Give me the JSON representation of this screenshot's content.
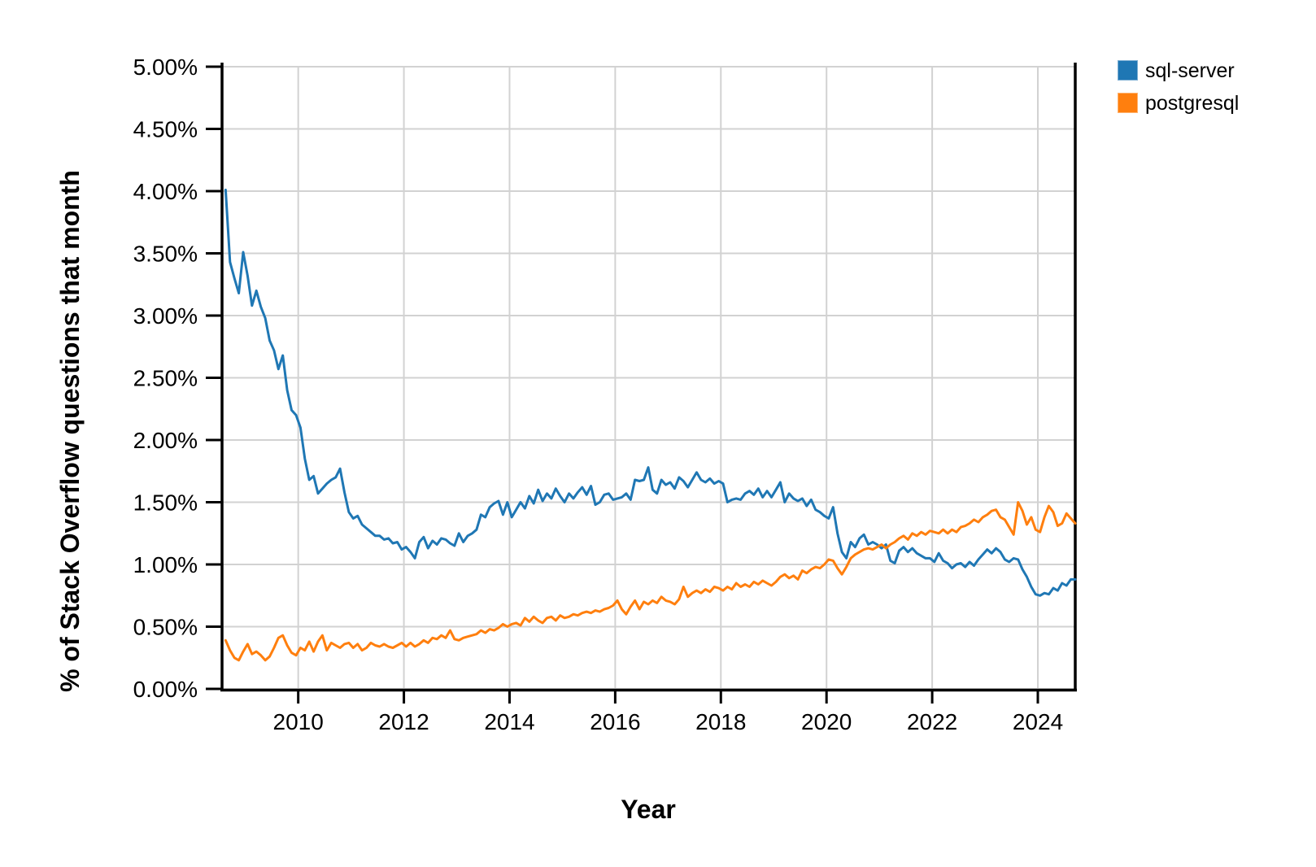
{
  "chart_data": {
    "type": "line",
    "title": "",
    "xlabel": "Year",
    "ylabel": "% of Stack Overflow questions that month",
    "x_frequency": "monthly",
    "x_start": "2008-08",
    "x_end": "2024-09",
    "xlim": [
      2008.558,
      2024.708
    ],
    "ylim": [
      0,
      5
    ],
    "grid": true,
    "legend_position": "outside-top-right",
    "grid_color": "#d2d2d2",
    "axis_color": "#000000",
    "x_ticks": [
      2010,
      2012,
      2014,
      2016,
      2018,
      2020,
      2022,
      2024
    ],
    "y_ticks": [
      0,
      0.5,
      1,
      1.5,
      2,
      2.5,
      3,
      3.5,
      4,
      4.5,
      5
    ],
    "y_tick_labels": [
      "0.00%",
      "0.50%",
      "1.00%",
      "1.50%",
      "2.00%",
      "2.50%",
      "3.00%",
      "3.50%",
      "4.00%",
      "4.50%",
      "5.00%"
    ],
    "series": [
      {
        "name": "sql-server",
        "color": "#1f77b4",
        "values": [
          4.01,
          3.43,
          3.3,
          3.18,
          3.51,
          3.32,
          3.08,
          3.2,
          3.07,
          2.98,
          2.8,
          2.72,
          2.57,
          2.68,
          2.4,
          2.24,
          2.2,
          2.1,
          1.85,
          1.68,
          1.71,
          1.57,
          1.61,
          1.65,
          1.68,
          1.7,
          1.77,
          1.58,
          1.42,
          1.37,
          1.39,
          1.32,
          1.29,
          1.26,
          1.23,
          1.23,
          1.2,
          1.21,
          1.17,
          1.18,
          1.12,
          1.14,
          1.1,
          1.05,
          1.18,
          1.22,
          1.13,
          1.19,
          1.16,
          1.21,
          1.2,
          1.17,
          1.15,
          1.25,
          1.18,
          1.23,
          1.25,
          1.28,
          1.4,
          1.38,
          1.46,
          1.49,
          1.51,
          1.4,
          1.5,
          1.38,
          1.44,
          1.5,
          1.45,
          1.55,
          1.49,
          1.6,
          1.51,
          1.57,
          1.53,
          1.61,
          1.55,
          1.5,
          1.57,
          1.53,
          1.58,
          1.62,
          1.56,
          1.63,
          1.48,
          1.5,
          1.56,
          1.57,
          1.52,
          1.53,
          1.54,
          1.57,
          1.52,
          1.68,
          1.67,
          1.68,
          1.78,
          1.6,
          1.57,
          1.68,
          1.64,
          1.66,
          1.61,
          1.7,
          1.67,
          1.62,
          1.68,
          1.74,
          1.68,
          1.66,
          1.69,
          1.65,
          1.67,
          1.65,
          1.5,
          1.52,
          1.53,
          1.52,
          1.57,
          1.59,
          1.56,
          1.61,
          1.54,
          1.59,
          1.54,
          1.6,
          1.66,
          1.5,
          1.57,
          1.53,
          1.51,
          1.53,
          1.47,
          1.52,
          1.44,
          1.42,
          1.39,
          1.37,
          1.46,
          1.25,
          1.1,
          1.05,
          1.18,
          1.14,
          1.21,
          1.24,
          1.16,
          1.18,
          1.16,
          1.13,
          1.16,
          1.03,
          1.01,
          1.11,
          1.14,
          1.1,
          1.13,
          1.09,
          1.07,
          1.05,
          1.05,
          1.02,
          1.09,
          1.03,
          1.01,
          0.97,
          1.0,
          1.01,
          0.98,
          1.02,
          0.99,
          1.04,
          1.08,
          1.12,
          1.09,
          1.13,
          1.1,
          1.04,
          1.02,
          1.05,
          1.04,
          0.96,
          0.9,
          0.82,
          0.76,
          0.75,
          0.77,
          0.76,
          0.81,
          0.79,
          0.85,
          0.83,
          0.88,
          0.88
        ]
      },
      {
        "name": "postgresql",
        "color": "#ff7f0e",
        "values": [
          0.39,
          0.31,
          0.25,
          0.23,
          0.3,
          0.36,
          0.28,
          0.3,
          0.27,
          0.23,
          0.26,
          0.33,
          0.41,
          0.43,
          0.35,
          0.29,
          0.27,
          0.33,
          0.31,
          0.38,
          0.3,
          0.38,
          0.43,
          0.31,
          0.37,
          0.35,
          0.33,
          0.36,
          0.37,
          0.33,
          0.36,
          0.31,
          0.33,
          0.37,
          0.35,
          0.34,
          0.36,
          0.34,
          0.33,
          0.35,
          0.37,
          0.34,
          0.37,
          0.34,
          0.36,
          0.39,
          0.37,
          0.41,
          0.4,
          0.43,
          0.41,
          0.47,
          0.4,
          0.39,
          0.41,
          0.42,
          0.43,
          0.44,
          0.47,
          0.45,
          0.48,
          0.47,
          0.49,
          0.52,
          0.5,
          0.52,
          0.53,
          0.51,
          0.57,
          0.54,
          0.58,
          0.55,
          0.53,
          0.57,
          0.58,
          0.55,
          0.59,
          0.57,
          0.58,
          0.6,
          0.59,
          0.61,
          0.62,
          0.61,
          0.63,
          0.62,
          0.64,
          0.65,
          0.67,
          0.71,
          0.64,
          0.6,
          0.66,
          0.71,
          0.64,
          0.7,
          0.68,
          0.71,
          0.69,
          0.74,
          0.71,
          0.7,
          0.68,
          0.72,
          0.82,
          0.74,
          0.77,
          0.79,
          0.77,
          0.8,
          0.78,
          0.82,
          0.81,
          0.79,
          0.82,
          0.8,
          0.85,
          0.82,
          0.84,
          0.82,
          0.86,
          0.84,
          0.87,
          0.85,
          0.83,
          0.86,
          0.9,
          0.92,
          0.89,
          0.91,
          0.88,
          0.95,
          0.93,
          0.96,
          0.98,
          0.97,
          1.0,
          1.04,
          1.03,
          0.97,
          0.92,
          0.98,
          1.05,
          1.08,
          1.1,
          1.12,
          1.13,
          1.12,
          1.14,
          1.16,
          1.13,
          1.16,
          1.18,
          1.21,
          1.23,
          1.2,
          1.25,
          1.23,
          1.26,
          1.24,
          1.27,
          1.26,
          1.25,
          1.28,
          1.25,
          1.28,
          1.26,
          1.3,
          1.31,
          1.33,
          1.36,
          1.34,
          1.38,
          1.4,
          1.43,
          1.44,
          1.38,
          1.36,
          1.3,
          1.24,
          1.5,
          1.43,
          1.32,
          1.38,
          1.28,
          1.26,
          1.38,
          1.47,
          1.42,
          1.31,
          1.33,
          1.41,
          1.37,
          1.33
        ]
      }
    ]
  }
}
